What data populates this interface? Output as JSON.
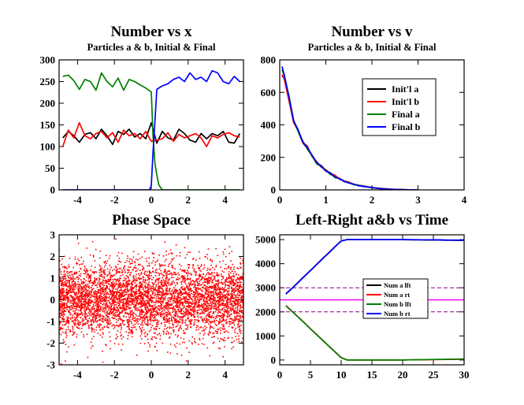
{
  "chart_data": [
    {
      "id": "p1",
      "type": "line",
      "title": "Number vs x",
      "subtitle": "Particles a & b, Initial & Final",
      "xlim": [
        -5,
        5
      ],
      "ylim": [
        0,
        300
      ],
      "xticks": [
        -4,
        -2,
        0,
        2,
        4
      ],
      "yticks": [
        0,
        50,
        100,
        150,
        200,
        250,
        300
      ],
      "xticklabels": [
        "-4",
        "-2",
        "0",
        "2",
        "4"
      ],
      "yticklabels": [
        "0",
        "50",
        "100",
        "150",
        "200",
        "250",
        "300"
      ],
      "series": [
        {
          "name": "Init'l a",
          "color": "#000000",
          "x": [
            -4.8,
            -4.5,
            -4.2,
            -3.9,
            -3.6,
            -3.3,
            -3.0,
            -2.7,
            -2.4,
            -2.1,
            -1.8,
            -1.5,
            -1.2,
            -0.9,
            -0.6,
            -0.3,
            0.0,
            0.3,
            0.6,
            0.9,
            1.2,
            1.5,
            1.8,
            2.1,
            2.4,
            2.7,
            3.0,
            3.3,
            3.6,
            3.9,
            4.2,
            4.5,
            4.8
          ],
          "y": [
            120,
            135,
            125,
            110,
            128,
            132,
            118,
            140,
            125,
            105,
            135,
            128,
            140,
            122,
            130,
            118,
            155,
            108,
            135,
            120,
            115,
            140,
            130,
            115,
            110,
            130,
            118,
            130,
            125,
            135,
            110,
            108,
            130
          ]
        },
        {
          "name": "Init'l b",
          "color": "#ff0000",
          "x": [
            -4.8,
            -4.5,
            -4.2,
            -3.9,
            -3.6,
            -3.3,
            -3.0,
            -2.7,
            -2.4,
            -2.1,
            -1.8,
            -1.5,
            -1.2,
            -0.9,
            -0.6,
            -0.3,
            0.0,
            0.3,
            0.6,
            0.9,
            1.2,
            1.5,
            1.8,
            2.1,
            2.4,
            2.7,
            3.0,
            3.3,
            3.6,
            3.9,
            4.2,
            4.5,
            4.8
          ],
          "y": [
            100,
            138,
            120,
            155,
            125,
            118,
            130,
            135,
            120,
            132,
            110,
            138,
            125,
            130,
            118,
            135,
            112,
            115,
            118,
            132,
            112,
            128,
            120,
            125,
            130,
            120,
            100,
            125,
            120,
            128,
            132,
            125,
            122
          ]
        },
        {
          "name": "Final a",
          "color": "#008000",
          "x": [
            -4.8,
            -4.5,
            -4.2,
            -3.9,
            -3.6,
            -3.3,
            -3.0,
            -2.7,
            -2.4,
            -2.1,
            -1.8,
            -1.5,
            -1.2,
            -0.9,
            -0.6,
            -0.3,
            0.0,
            0.1,
            0.2,
            0.3,
            0.4,
            0.6,
            0.9,
            1.2,
            1.5,
            1.8,
            2.1,
            2.4,
            2.7,
            3.0,
            3.3,
            3.6,
            3.9,
            4.2,
            4.5,
            4.8
          ],
          "y": [
            262,
            265,
            252,
            232,
            255,
            250,
            230,
            270,
            250,
            238,
            258,
            230,
            255,
            250,
            242,
            235,
            226,
            120,
            60,
            35,
            12,
            0,
            0,
            0,
            0,
            0,
            0,
            0,
            0,
            0,
            0,
            0,
            0,
            0,
            0,
            0
          ]
        },
        {
          "name": "Final b",
          "color": "#0000ff",
          "x": [
            -4.8,
            -4.5,
            -4.2,
            -3.9,
            -3.6,
            -3.3,
            -3.0,
            -2.7,
            -2.4,
            -2.1,
            -1.8,
            -1.5,
            -1.2,
            -0.9,
            -0.6,
            -0.3,
            -0.1,
            0.0,
            0.1,
            0.2,
            0.3,
            0.6,
            0.9,
            1.2,
            1.5,
            1.8,
            2.1,
            2.4,
            2.7,
            3.0,
            3.3,
            3.6,
            3.9,
            4.2,
            4.5,
            4.8
          ],
          "y": [
            0,
            0,
            0,
            0,
            0,
            0,
            0,
            0,
            0,
            0,
            0,
            0,
            0,
            0,
            0,
            0,
            0,
            10,
            90,
            160,
            232,
            240,
            245,
            255,
            260,
            250,
            270,
            255,
            260,
            250,
            275,
            270,
            250,
            245,
            262,
            250
          ]
        }
      ]
    },
    {
      "id": "p2",
      "type": "line",
      "title": "Number vs v",
      "subtitle": "Particles a & b, Initial & Final",
      "xlim": [
        0,
        4
      ],
      "ylim": [
        0,
        800
      ],
      "xticks": [
        0,
        1,
        2,
        3,
        4
      ],
      "yticks": [
        0,
        200,
        400,
        600,
        800
      ],
      "xticklabels": [
        "0",
        "1",
        "2",
        "3",
        "4"
      ],
      "yticklabels": [
        "0",
        "200",
        "400",
        "600",
        "800"
      ],
      "legend": {
        "position": "top-right",
        "entries": [
          "Init'l a",
          "Init'l b",
          "Final a",
          "Final b"
        ]
      },
      "series": [
        {
          "name": "Init'l a",
          "color": "#000000",
          "x": [
            0.05,
            0.1,
            0.2,
            0.3,
            0.4,
            0.5,
            0.6,
            0.7,
            0.8,
            0.9,
            1.0,
            1.1,
            1.2,
            1.3,
            1.4,
            1.5,
            1.6,
            1.7,
            1.8,
            1.9,
            2.0,
            2.2,
            2.4,
            2.6,
            2.8,
            3.0
          ],
          "y": [
            700,
            690,
            560,
            420,
            360,
            290,
            255,
            210,
            165,
            150,
            120,
            95,
            85,
            70,
            55,
            45,
            35,
            28,
            25,
            20,
            15,
            8,
            4,
            2,
            1,
            0
          ]
        },
        {
          "name": "Init'l b",
          "color": "#ff0000",
          "x": [
            0.05,
            0.1,
            0.2,
            0.3,
            0.4,
            0.5,
            0.6,
            0.7,
            0.8,
            0.9,
            1.0,
            1.1,
            1.2,
            1.3,
            1.4,
            1.5,
            1.6,
            1.7,
            1.8,
            1.9,
            2.0,
            2.2,
            2.4,
            2.6,
            2.8,
            3.0
          ],
          "y": [
            710,
            680,
            550,
            415,
            365,
            290,
            270,
            205,
            175,
            140,
            125,
            100,
            90,
            65,
            55,
            48,
            35,
            30,
            24,
            18,
            14,
            9,
            5,
            2,
            1,
            0
          ]
        },
        {
          "name": "Final a",
          "color": "#008000",
          "x": [
            0.05,
            0.1,
            0.2,
            0.3,
            0.4,
            0.5,
            0.6,
            0.7,
            0.8,
            0.9,
            1.0,
            1.1,
            1.2,
            1.3,
            1.4,
            1.5,
            1.6,
            1.7,
            1.8,
            1.9,
            2.0,
            2.2,
            2.4,
            2.6,
            2.8,
            3.0
          ],
          "y": [
            740,
            700,
            580,
            430,
            360,
            300,
            250,
            210,
            160,
            145,
            120,
            100,
            75,
            70,
            50,
            45,
            32,
            30,
            22,
            20,
            12,
            8,
            4,
            2,
            1,
            0
          ]
        },
        {
          "name": "Final b",
          "color": "#0000ff",
          "x": [
            0.05,
            0.1,
            0.2,
            0.3,
            0.4,
            0.5,
            0.6,
            0.7,
            0.8,
            0.9,
            1.0,
            1.1,
            1.2,
            1.3,
            1.4,
            1.5,
            1.6,
            1.7,
            1.8,
            1.9,
            2.0,
            2.2,
            2.4,
            2.6,
            2.8,
            3.0
          ],
          "y": [
            760,
            705,
            570,
            425,
            370,
            295,
            260,
            215,
            170,
            145,
            115,
            105,
            80,
            68,
            52,
            42,
            36,
            26,
            22,
            18,
            14,
            7,
            4,
            2,
            1,
            0
          ]
        }
      ]
    },
    {
      "id": "p3",
      "type": "scatter",
      "title": "Phase Space",
      "xlim": [
        -5,
        5
      ],
      "ylim": [
        -3,
        3
      ],
      "xticks": [
        -4,
        -2,
        0,
        2,
        4
      ],
      "yticks": [
        -3,
        -2,
        -1,
        0,
        1,
        2,
        3
      ],
      "xticklabels": [
        "-4",
        "-2",
        "0",
        "2",
        "4"
      ],
      "yticklabels": [
        "-3",
        "-2",
        "-1",
        "0",
        "1",
        "2",
        "3"
      ],
      "marker_color": "#ff0000",
      "points": {
        "count": 5000,
        "x_distribution": "uniform",
        "x_range": [
          -5,
          5
        ],
        "y_distribution": "normal",
        "y_mean": 0,
        "y_sigma": 0.85
      }
    },
    {
      "id": "p4",
      "type": "line",
      "title": "Left-Right  a&b vs Time",
      "xlim": [
        0,
        30
      ],
      "ylim": [
        -200,
        5200
      ],
      "xticks": [
        0,
        5,
        10,
        15,
        20,
        25,
        30
      ],
      "yticks": [
        0,
        1000,
        2000,
        3000,
        4000,
        5000
      ],
      "xticklabels": [
        "0",
        "5",
        "10",
        "15",
        "20",
        "25",
        "30"
      ],
      "yticklabels": [
        "0",
        "1000",
        "2000",
        "3000",
        "4000",
        "5000"
      ],
      "legend": {
        "position": "center-right",
        "entries": [
          "Num a lft",
          "Num a rt",
          "Num b lft",
          "Num b rt"
        ]
      },
      "reference_lines": [
        {
          "y": 2500,
          "color": "#ff00ff",
          "style": "solid"
        },
        {
          "y": 3000,
          "color": "#800080",
          "style": "dashed"
        },
        {
          "y": 2000,
          "color": "#800080",
          "style": "dashed"
        }
      ],
      "series": [
        {
          "name": "Num a lft",
          "color": "#000000",
          "x": [
            1,
            2,
            3,
            4,
            5,
            6,
            7,
            8,
            9,
            10,
            11,
            12,
            13,
            14,
            15,
            16,
            17,
            18,
            19,
            20,
            21,
            22,
            23,
            24,
            25,
            26,
            27,
            28,
            29,
            30
          ],
          "y": [
            2750,
            2980,
            3230,
            3480,
            3720,
            3970,
            4220,
            4460,
            4710,
            4950,
            5000,
            5000,
            5000,
            5000,
            5000,
            5000,
            5000,
            5000,
            5000,
            5000,
            4995,
            4990,
            4990,
            4985,
            4985,
            4980,
            4975,
            4975,
            4970,
            4965
          ]
        },
        {
          "name": "Num a rt",
          "color": "#ff0000",
          "x": [
            1,
            2,
            3,
            4,
            5,
            6,
            7,
            8,
            9,
            10,
            11,
            12,
            13,
            14,
            15,
            16,
            17,
            18,
            19,
            20,
            21,
            22,
            23,
            24,
            25,
            26,
            27,
            28,
            29,
            30
          ],
          "y": [
            2260,
            2030,
            1790,
            1550,
            1300,
            1060,
            820,
            580,
            340,
            100,
            0,
            0,
            0,
            0,
            0,
            0,
            0,
            0,
            0,
            0,
            5,
            8,
            10,
            12,
            15,
            18,
            22,
            26,
            30,
            35
          ]
        },
        {
          "name": "Num b lft",
          "color": "#008000",
          "x": [
            1,
            2,
            3,
            4,
            5,
            6,
            7,
            8,
            9,
            10,
            11,
            12,
            13,
            14,
            15,
            16,
            17,
            18,
            19,
            20,
            21,
            22,
            23,
            24,
            25,
            26,
            27,
            28,
            29,
            30
          ],
          "y": [
            2250,
            2020,
            1780,
            1540,
            1290,
            1050,
            810,
            570,
            330,
            90,
            0,
            0,
            0,
            0,
            0,
            0,
            0,
            0,
            0,
            0,
            5,
            10,
            12,
            18,
            22,
            26,
            30,
            35,
            38,
            42
          ]
        },
        {
          "name": "Num b rt",
          "color": "#0000ff",
          "x": [
            1,
            2,
            3,
            4,
            5,
            6,
            7,
            8,
            9,
            10,
            11,
            12,
            13,
            14,
            15,
            16,
            17,
            18,
            19,
            20,
            21,
            22,
            23,
            24,
            25,
            26,
            27,
            28,
            29,
            30
          ],
          "y": [
            2740,
            2970,
            3220,
            3470,
            3710,
            3960,
            4210,
            4450,
            4700,
            4940,
            5000,
            5000,
            5000,
            5000,
            5000,
            5000,
            5000,
            5000,
            5000,
            5000,
            5000,
            4998,
            4995,
            4995,
            4990,
            4990,
            4985,
            4982,
            4980,
            4978
          ]
        }
      ]
    }
  ]
}
